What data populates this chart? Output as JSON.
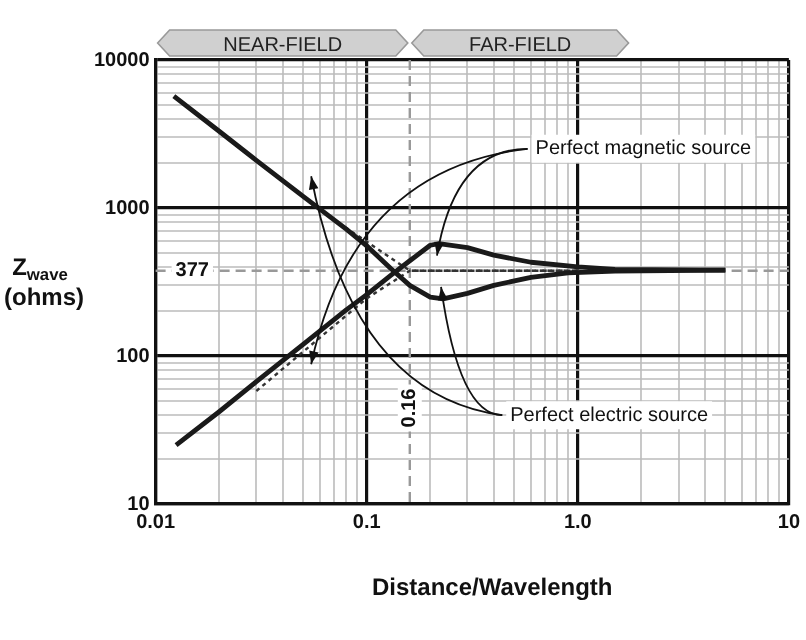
{
  "chart_data": {
    "type": "line",
    "xlabel": "Distance/Wavelength",
    "ylabel": "Z$_{wave}$ (ohms)",
    "log": "xy",
    "grid": true,
    "legend": false,
    "xlim": [
      0.01,
      10
    ],
    "ylim": [
      10,
      10000
    ],
    "xticks": [
      0.01,
      {
        "value": 0.02,
        "label": null
      },
      {
        "value": 0.03,
        "label": null
      },
      {
        "value": 0.04,
        "label": null
      },
      {
        "value": 0.05,
        "label": null
      },
      {
        "value": 0.06,
        "label": null
      },
      {
        "value": 0.07,
        "label": null
      },
      {
        "value": 0.08,
        "label": null
      },
      {
        "value": 0.09,
        "label": null
      },
      0.1,
      {
        "value": 0.2,
        "label": null
      },
      {
        "value": 0.3,
        "label": null
      },
      {
        "value": 0.4,
        "label": null
      },
      {
        "value": 0.5,
        "label": null
      },
      {
        "value": 0.6,
        "label": null
      },
      {
        "value": 0.7,
        "label": null
      },
      {
        "value": 0.8,
        "label": null
      },
      {
        "value": 0.9,
        "label": null
      },
      {
        "value": 1,
        "label": "1.0"
      },
      {
        "value": 2,
        "label": null
      },
      {
        "value": 3,
        "label": null
      },
      {
        "value": 4,
        "label": null
      },
      {
        "value": 5,
        "label": null
      },
      {
        "value": 6,
        "label": null
      },
      {
        "value": 7,
        "label": null
      },
      {
        "value": 8,
        "label": null
      },
      {
        "value": 9,
        "label": null
      },
      10
    ],
    "yticks": [
      10,
      {
        "value": 20,
        "label": null
      },
      {
        "value": 30,
        "label": null
      },
      {
        "value": 40,
        "label": null
      },
      {
        "value": 50,
        "label": null
      },
      {
        "value": 60,
        "label": null
      },
      {
        "value": 70,
        "label": null
      },
      {
        "value": 80,
        "label": null
      },
      {
        "value": 90,
        "label": null
      },
      100,
      {
        "value": 200,
        "label": null
      },
      {
        "value": 300,
        "label": null
      },
      {
        "value": 400,
        "label": null
      },
      {
        "value": 500,
        "label": null
      },
      {
        "value": 600,
        "label": null
      },
      {
        "value": 700,
        "label": null
      },
      {
        "value": 800,
        "label": null
      },
      {
        "value": 900,
        "label": null
      },
      1000,
      {
        "value": 2000,
        "label": null
      },
      {
        "value": 3000,
        "label": null
      },
      {
        "value": 4000,
        "label": null
      },
      {
        "value": 5000,
        "label": null
      },
      {
        "value": 6000,
        "label": null
      },
      {
        "value": 7000,
        "label": null
      },
      {
        "value": 8000,
        "label": null
      },
      {
        "value": 9000,
        "label": null
      },
      10000
    ],
    "series": [
      {
        "name": "Perfect magnetic source",
        "color": "#1a1a1a",
        "x": [
          0.0125,
          0.02,
          0.03,
          0.05,
          0.08,
          0.1,
          0.13,
          0.16,
          0.2,
          0.22,
          0.3,
          0.4,
          0.6,
          1,
          1.5,
          5
        ],
        "values": [
          25,
          42,
          67,
          120,
          205,
          260,
          350,
          440,
          560,
          575,
          540,
          480,
          430,
          400,
          385,
          380
        ]
      },
      {
        "name": "Perfect electric source",
        "color": "#1a1a1a",
        "x": [
          0.0122,
          0.02,
          0.03,
          0.05,
          0.08,
          0.1,
          0.13,
          0.16,
          0.2,
          0.23,
          0.3,
          0.4,
          0.6,
          0.9,
          1.5,
          5
        ],
        "values": [
          5700,
          3300,
          2100,
          1200,
          720,
          555,
          390,
          300,
          250,
          243,
          265,
          300,
          340,
          365,
          375,
          380
        ]
      },
      {
        "color": "#333333",
        "line_style": "dotted",
        "x": [
          0.055,
          0.16,
          1
        ],
        "values": [
          1050,
          377,
          377
        ]
      },
      {
        "color": "#333333",
        "line_style": "dotted",
        "x": [
          0.03,
          0.1,
          0.16,
          1
        ],
        "values": [
          58,
          245,
          377,
          377
        ]
      }
    ],
    "ref_lines": [
      {
        "axis": "y",
        "value": 377,
        "label": "377",
        "color": "#999999",
        "line_style": "dashed"
      },
      {
        "axis": "x",
        "value": 0.16,
        "label": "0.16",
        "color": "#999999",
        "line_style": "dashed"
      }
    ],
    "annotations": [
      "NEAR-FIELD",
      "FAR-FIELD"
    ]
  }
}
